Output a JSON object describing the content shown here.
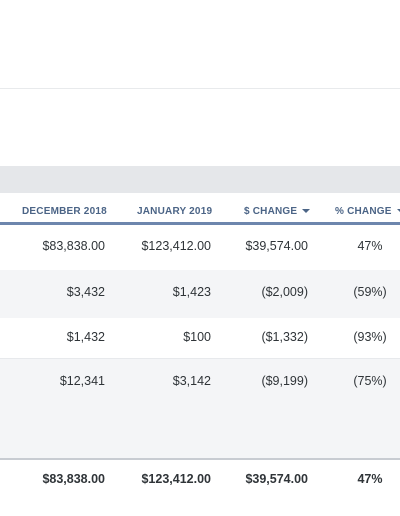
{
  "columns": [
    {
      "label": "DECEMBER 2018"
    },
    {
      "label": "JANUARY 2019"
    },
    {
      "label": "$ CHANGE",
      "sortable": true
    },
    {
      "label": "% CHANGE",
      "sortable": true
    }
  ],
  "rows": [
    {
      "dec": "$83,838.00",
      "jan": "$123,412.00",
      "dchange": "$39,574.00",
      "pchange": "47%"
    },
    {
      "dec": "$3,432",
      "jan": "$1,423",
      "dchange": "($2,009)",
      "pchange": "(59%)"
    },
    {
      "dec": "$1,432",
      "jan": "$100",
      "dchange": "($1,332)",
      "pchange": "(93%)"
    },
    {
      "dec": "$12,341",
      "jan": "$3,142",
      "dchange": "($9,199)",
      "pchange": "(75%)"
    }
  ],
  "total": {
    "dec": "$83,838.00",
    "jan": "$123,412.00",
    "dchange": "$39,574.00",
    "pchange": "47%"
  },
  "colors": {
    "header_text": "#4b6486",
    "header_rule": "#6d86ad",
    "band": "#e5e7ea",
    "alt_row": "#f4f5f7"
  }
}
